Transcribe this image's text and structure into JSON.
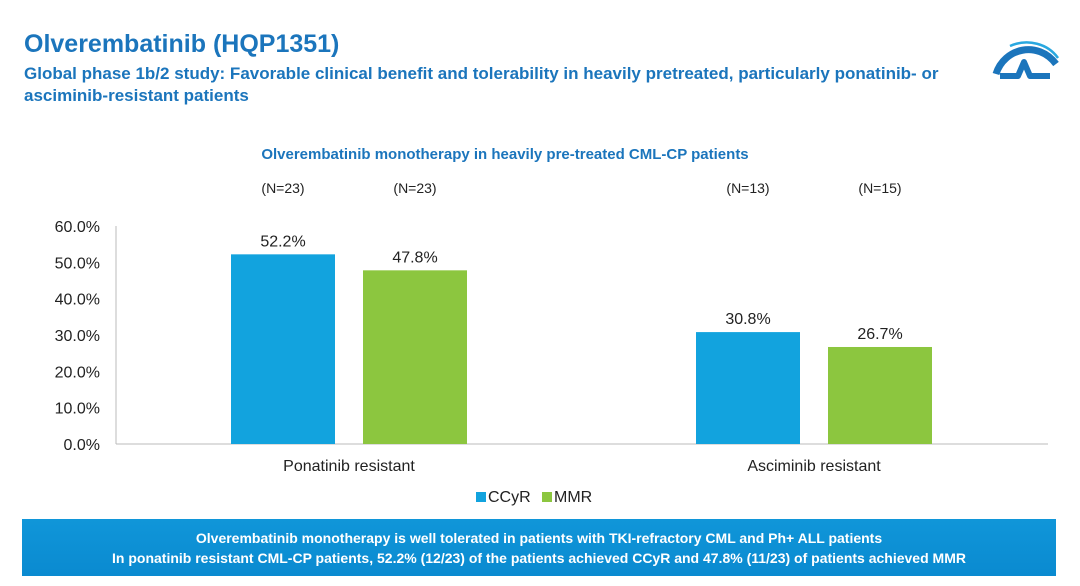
{
  "header": {
    "title": "Olverembatinib (HQP1351)",
    "subtitle": "Global phase 1b/2 study: Favorable clinical benefit and tolerability in heavily pretreated, particularly ponatinib- or asciminib-resistant patients"
  },
  "chart_data": {
    "type": "bar",
    "title": "Olverembatinib monotherapy in heavily pre-treated CML-CP patients",
    "categories": [
      "Ponatinib resistant",
      "Asciminib resistant"
    ],
    "series": [
      {
        "name": "CCyR",
        "color": "#12a3de",
        "values": [
          52.2,
          30.8
        ],
        "labels": [
          "52.2%",
          "30.8%"
        ],
        "n": [
          "(N=23)",
          "(N=13)"
        ]
      },
      {
        "name": "MMR",
        "color": "#8cc63f",
        "values": [
          47.8,
          26.7
        ],
        "labels": [
          "47.8%",
          "26.7%"
        ],
        "n": [
          "(N=23)",
          "(N=15)"
        ]
      }
    ],
    "ylim": [
      0,
      60
    ],
    "yticks": [
      "0.0%",
      "10.0%",
      "20.0%",
      "30.0%",
      "40.0%",
      "50.0%",
      "60.0%"
    ],
    "legend": "bottom"
  },
  "banner": {
    "line1": "Olverembatinib monotherapy is well tolerated in patients with TKI-refractory CML and Ph+ ALL patients",
    "line2": "In ponatinib resistant CML-CP patients, 52.2% (12/23) of the patients achieved CCyR and 47.8% (11/23) of patients achieved MMR"
  }
}
